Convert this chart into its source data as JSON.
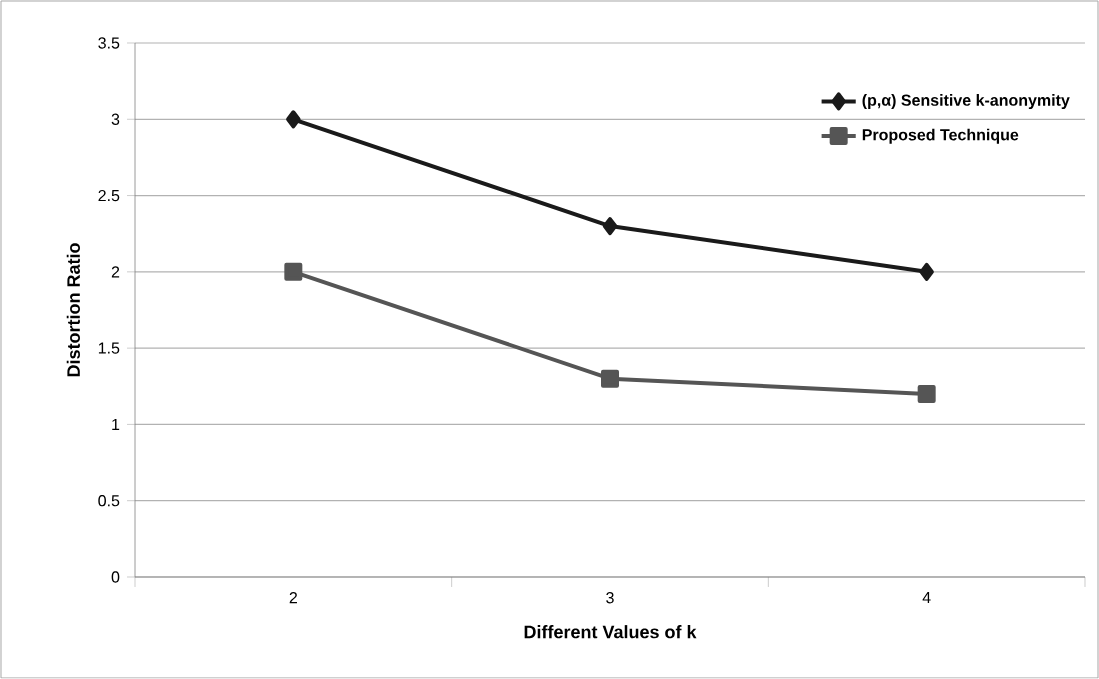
{
  "chart_data": {
    "type": "line",
    "xlabel": "Different Values of  k",
    "ylabel": "Distortion Ratio",
    "categories": [
      "2",
      "3",
      "4"
    ],
    "series": [
      {
        "name": "(p,α) Sensitive k-anonymity",
        "color": "#1a1a1a",
        "values": [
          3,
          2.3,
          2
        ],
        "marker": "diamond"
      },
      {
        "name": "Proposed Technique",
        "color": "#555555",
        "values": [
          2,
          1.3,
          1.2
        ],
        "marker": "square"
      }
    ],
    "ylim": [
      0,
      3.5
    ],
    "yticks": [
      0,
      0.5,
      1,
      1.5,
      2,
      2.5,
      3,
      3.5
    ],
    "grid": "y",
    "legend": "top right",
    "line_style": "solid"
  }
}
